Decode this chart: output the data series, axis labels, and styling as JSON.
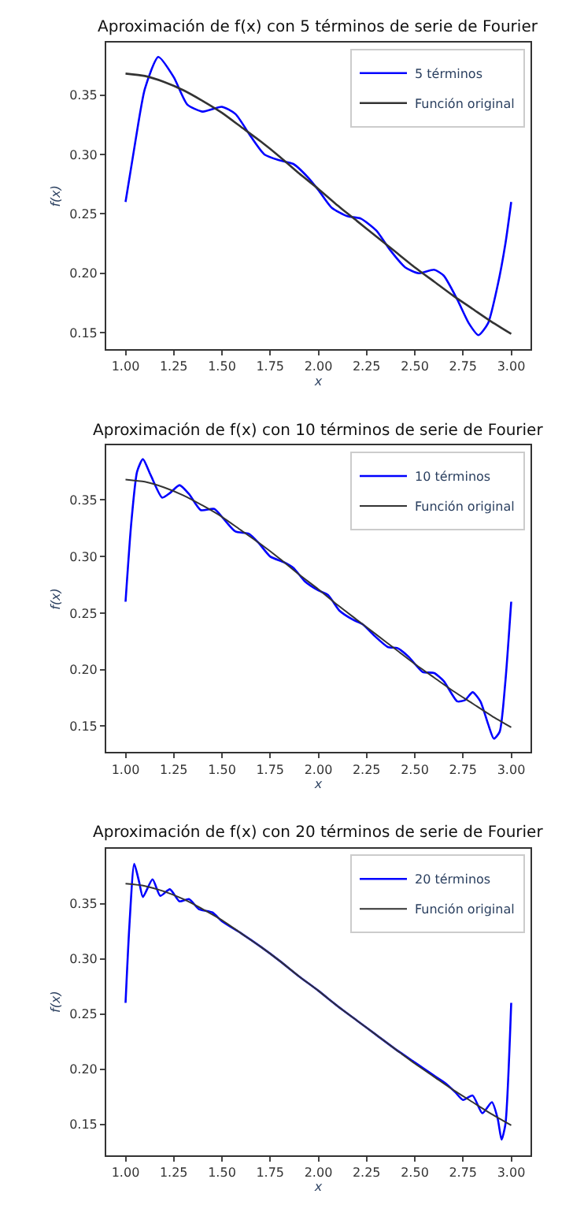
{
  "chart_data": [
    {
      "type": "line",
      "title": "Aproximación de f(x) con 5 términos de serie de Fourier",
      "xlabel": "x",
      "ylabel": "f(x)",
      "legend": "top right",
      "marker": "none",
      "line_style": "solid",
      "xlim": [
        0.9,
        3.1
      ],
      "ylim": [
        0.136,
        0.394
      ],
      "xticks": [
        {
          "value": 1,
          "label": "1.00"
        },
        {
          "value": 1.25,
          "label": "1.25"
        },
        {
          "value": 1.5,
          "label": "1.50"
        },
        {
          "value": 1.75,
          "label": "1.75"
        },
        {
          "value": 2,
          "label": "2.00"
        },
        {
          "value": 2.25,
          "label": "2.25"
        },
        {
          "value": 2.5,
          "label": "2.50"
        },
        {
          "value": 2.75,
          "label": "2.75"
        },
        {
          "value": 3,
          "label": "3.00"
        }
      ],
      "yticks": [
        {
          "value": 0.15,
          "label": "0.15"
        },
        {
          "value": 0.2,
          "label": "0.20"
        },
        {
          "value": 0.25,
          "label": "0.25"
        },
        {
          "value": 0.3,
          "label": "0.30"
        },
        {
          "value": 0.35,
          "label": "0.35"
        }
      ],
      "series": [
        {
          "name": "5 términos",
          "color": "#0000ff",
          "x": [
            1.0,
            1.05,
            1.1,
            1.17,
            1.25,
            1.32,
            1.4,
            1.5,
            1.57,
            1.65,
            1.72,
            1.8,
            1.87,
            1.95,
            2.0,
            2.07,
            2.15,
            2.22,
            2.3,
            2.37,
            2.45,
            2.52,
            2.6,
            2.65,
            2.72,
            2.78,
            2.83,
            2.88,
            2.93,
            2.97,
            3.0
          ],
          "values": [
            0.26,
            0.31,
            0.355,
            0.382,
            0.365,
            0.342,
            0.336,
            0.34,
            0.334,
            0.315,
            0.3,
            0.295,
            0.292,
            0.28,
            0.27,
            0.255,
            0.248,
            0.246,
            0.236,
            0.22,
            0.205,
            0.2,
            0.203,
            0.198,
            0.178,
            0.158,
            0.148,
            0.158,
            0.19,
            0.225,
            0.26
          ]
        },
        {
          "name": "Función original",
          "color": "#333333",
          "x": [
            1.0,
            1.1,
            1.2,
            1.3,
            1.4,
            1.5,
            1.6,
            1.7,
            1.8,
            1.9,
            2.0,
            2.1,
            2.2,
            2.3,
            2.4,
            2.5,
            2.6,
            2.7,
            2.8,
            2.9,
            3.0
          ],
          "values": [
            0.368,
            0.366,
            0.361,
            0.354,
            0.345,
            0.335,
            0.323,
            0.311,
            0.298,
            0.284,
            0.271,
            0.257,
            0.244,
            0.231,
            0.218,
            0.205,
            0.193,
            0.181,
            0.17,
            0.159,
            0.149
          ]
        }
      ]
    },
    {
      "type": "line",
      "title": "Aproximación de f(x) con 10 términos de serie de Fourier",
      "xlabel": "x",
      "ylabel": "f(x)",
      "legend": "top right",
      "marker": "none",
      "line_style": "solid",
      "xlim": [
        0.9,
        3.1
      ],
      "ylim": [
        0.127,
        0.398
      ],
      "xticks": [
        {
          "value": 1,
          "label": "1.00"
        },
        {
          "value": 1.25,
          "label": "1.25"
        },
        {
          "value": 1.5,
          "label": "1.50"
        },
        {
          "value": 1.75,
          "label": "1.75"
        },
        {
          "value": 2,
          "label": "2.00"
        },
        {
          "value": 2.25,
          "label": "2.25"
        },
        {
          "value": 2.5,
          "label": "2.50"
        },
        {
          "value": 2.75,
          "label": "2.75"
        },
        {
          "value": 3,
          "label": "3.00"
        }
      ],
      "yticks": [
        {
          "value": 0.15,
          "label": "0.15"
        },
        {
          "value": 0.2,
          "label": "0.20"
        },
        {
          "value": 0.25,
          "label": "0.25"
        },
        {
          "value": 0.3,
          "label": "0.30"
        },
        {
          "value": 0.35,
          "label": "0.35"
        }
      ],
      "series": [
        {
          "name": "10 términos",
          "color": "#0000ff",
          "x": [
            1.0,
            1.03,
            1.06,
            1.09,
            1.13,
            1.19,
            1.23,
            1.28,
            1.33,
            1.39,
            1.46,
            1.51,
            1.57,
            1.64,
            1.69,
            1.75,
            1.82,
            1.87,
            1.93,
            2.0,
            2.05,
            2.11,
            2.18,
            2.23,
            2.29,
            2.36,
            2.41,
            2.47,
            2.54,
            2.6,
            2.65,
            2.72,
            2.76,
            2.8,
            2.84,
            2.88,
            2.91,
            2.94,
            2.97,
            3.0
          ],
          "values": [
            0.26,
            0.33,
            0.375,
            0.386,
            0.372,
            0.352,
            0.356,
            0.363,
            0.355,
            0.341,
            0.342,
            0.333,
            0.322,
            0.32,
            0.312,
            0.3,
            0.295,
            0.29,
            0.278,
            0.27,
            0.266,
            0.252,
            0.244,
            0.24,
            0.23,
            0.22,
            0.219,
            0.211,
            0.198,
            0.197,
            0.19,
            0.172,
            0.173,
            0.18,
            0.172,
            0.152,
            0.139,
            0.145,
            0.19,
            0.26
          ]
        },
        {
          "name": "Función original",
          "color": "#333333",
          "x": [
            1.0,
            1.1,
            1.2,
            1.3,
            1.4,
            1.5,
            1.6,
            1.7,
            1.8,
            1.9,
            2.0,
            2.1,
            2.2,
            2.3,
            2.4,
            2.5,
            2.6,
            2.7,
            2.8,
            2.9,
            3.0
          ],
          "values": [
            0.368,
            0.366,
            0.361,
            0.354,
            0.345,
            0.335,
            0.323,
            0.311,
            0.298,
            0.284,
            0.271,
            0.257,
            0.244,
            0.231,
            0.218,
            0.205,
            0.193,
            0.181,
            0.17,
            0.159,
            0.149
          ]
        }
      ]
    },
    {
      "type": "line",
      "title": "Aproximación de f(x) con 20 términos de serie de Fourier",
      "xlabel": "x",
      "ylabel": "f(x)",
      "legend": "top right",
      "marker": "none",
      "line_style": "solid",
      "xlim": [
        0.9,
        3.1
      ],
      "ylim": [
        0.122,
        0.4
      ],
      "xticks": [
        {
          "value": 1,
          "label": "1.00"
        },
        {
          "value": 1.25,
          "label": "1.25"
        },
        {
          "value": 1.5,
          "label": "1.50"
        },
        {
          "value": 1.75,
          "label": "1.75"
        },
        {
          "value": 2,
          "label": "2.00"
        },
        {
          "value": 2.25,
          "label": "2.25"
        },
        {
          "value": 2.5,
          "label": "2.50"
        },
        {
          "value": 2.75,
          "label": "2.75"
        },
        {
          "value": 3,
          "label": "3.00"
        }
      ],
      "yticks": [
        {
          "value": 0.15,
          "label": "0.15"
        },
        {
          "value": 0.2,
          "label": "0.20"
        },
        {
          "value": 0.25,
          "label": "0.25"
        },
        {
          "value": 0.3,
          "label": "0.30"
        },
        {
          "value": 0.35,
          "label": "0.35"
        }
      ],
      "series": [
        {
          "name": "20 términos",
          "color": "#0000ff",
          "x": [
            1.0,
            1.02,
            1.045,
            1.07,
            1.09,
            1.14,
            1.18,
            1.23,
            1.28,
            1.33,
            1.38,
            1.45,
            1.5,
            1.6,
            1.7,
            1.8,
            1.9,
            2.0,
            2.1,
            2.2,
            2.3,
            2.4,
            2.5,
            2.6,
            2.66,
            2.71,
            2.75,
            2.8,
            2.85,
            2.9,
            2.93,
            2.95,
            2.97,
            3.0
          ],
          "values": [
            0.26,
            0.33,
            0.386,
            0.37,
            0.356,
            0.372,
            0.357,
            0.363,
            0.352,
            0.354,
            0.345,
            0.342,
            0.334,
            0.323,
            0.311,
            0.298,
            0.284,
            0.271,
            0.257,
            0.244,
            0.231,
            0.218,
            0.206,
            0.194,
            0.187,
            0.179,
            0.172,
            0.176,
            0.16,
            0.17,
            0.155,
            0.136,
            0.15,
            0.26
          ]
        },
        {
          "name": "Función original",
          "color": "#333333",
          "x": [
            1.0,
            1.1,
            1.2,
            1.3,
            1.4,
            1.5,
            1.6,
            1.7,
            1.8,
            1.9,
            2.0,
            2.1,
            2.2,
            2.3,
            2.4,
            2.5,
            2.6,
            2.7,
            2.8,
            2.9,
            3.0
          ],
          "values": [
            0.368,
            0.366,
            0.361,
            0.354,
            0.345,
            0.335,
            0.323,
            0.311,
            0.298,
            0.284,
            0.271,
            0.257,
            0.244,
            0.231,
            0.218,
            0.205,
            0.193,
            0.181,
            0.17,
            0.159,
            0.149
          ]
        }
      ]
    }
  ]
}
